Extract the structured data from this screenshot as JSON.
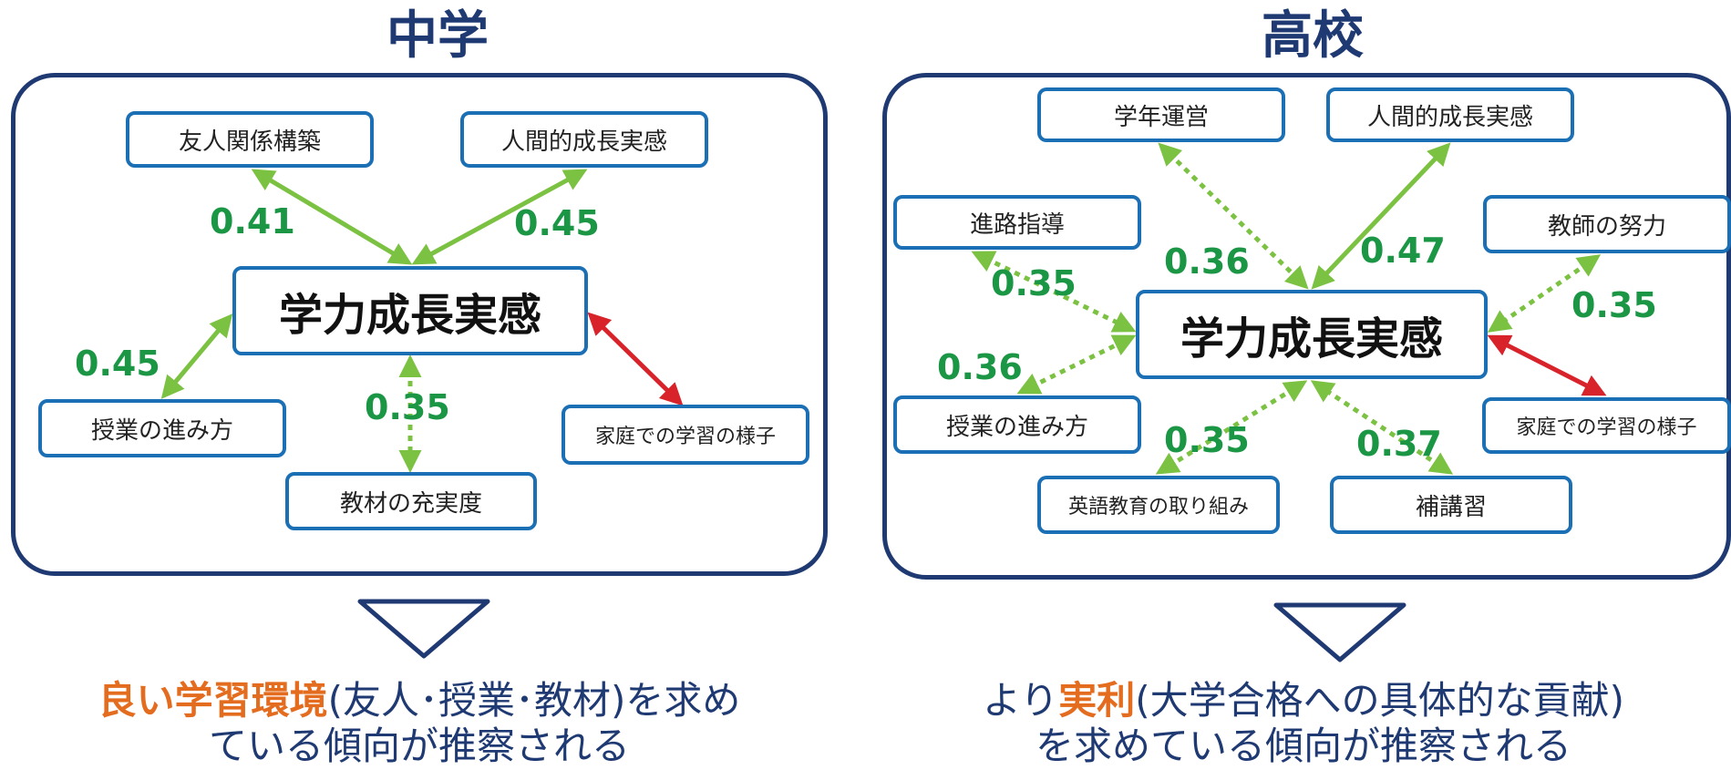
{
  "colors": {
    "navy": "#1f3a73",
    "box_border": "#1b6fb5",
    "positive": "#7cc242",
    "positive_dotted": "#7cc242",
    "negative": "#d8232a",
    "coef_text": "#1a9645",
    "highlight": "#e46c1f"
  },
  "left": {
    "title": "中学",
    "center": "学力成長実感",
    "nodes": {
      "friend": "友人関係構築",
      "growth": "人間的成長実感",
      "lesson": "授業の進み方",
      "material": "教材の充実度",
      "home": "家庭での学習の様子"
    },
    "coefficients": {
      "friend": "0.41",
      "growth": "0.45",
      "lesson": "0.45",
      "material": "0.35"
    },
    "conclusion": {
      "highlight": "良い学習環境",
      "rest1": "(友人･授業･教材)を求め",
      "line2": "ている傾向が推察される"
    }
  },
  "right": {
    "title": "高校",
    "center": "学力成長実感",
    "nodes": {
      "grade": "学年運営",
      "growth": "人間的成長実感",
      "career": "進路指導",
      "teacher": "教師の努力",
      "lesson": "授業の進み方",
      "home": "家庭での学習の様子",
      "english": "英語教育の取り組み",
      "supplement": "補講習"
    },
    "coefficients": {
      "grade": "0.36",
      "growth": "0.47",
      "career": "0.35",
      "teacher": "0.35",
      "lesson": "0.36",
      "english": "0.35",
      "supplement": "0.37"
    },
    "conclusion": {
      "prefix": "より",
      "highlight": "実利",
      "rest1": "(大学合格への具体的な貢献)",
      "line2": "を求めている傾向が推察される"
    }
  }
}
